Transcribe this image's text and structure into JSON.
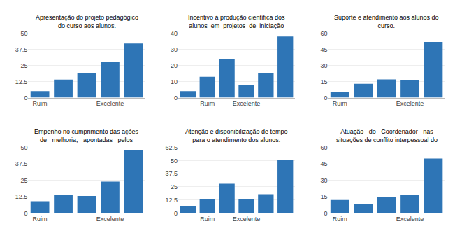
{
  "chart_data": [
    {
      "type": "bar",
      "title": "Apresentação do projeto pedagógico\ndo curso aos alunos.",
      "categories": [
        "Ruim",
        null,
        null,
        "Excelente",
        null
      ],
      "values": [
        5,
        14,
        19,
        28,
        42
      ],
      "color": "#2E75B6",
      "ylim": [
        0,
        50
      ],
      "yticks": [
        0,
        12.5,
        25,
        37.5,
        50
      ],
      "grid": true
    },
    {
      "type": "bar",
      "title": "Incentivo à produção científica dos\nalunos  em  projetos  de  iniciação",
      "categories": [
        null,
        "Ruim",
        null,
        "Excelente",
        null,
        null
      ],
      "values": [
        4,
        13,
        24,
        8,
        15,
        38
      ],
      "color": "#2E75B6",
      "ylim": [
        0,
        40
      ],
      "yticks": [
        0,
        10,
        20,
        30,
        40
      ],
      "grid": true
    },
    {
      "type": "bar",
      "title": "Suporte e atendimento aos alunos do\ncurso.",
      "categories": [
        "Ruim",
        null,
        null,
        "Excelente",
        null
      ],
      "values": [
        5,
        13,
        17,
        16,
        52
      ],
      "color": "#2E75B6",
      "ylim": [
        0,
        60
      ],
      "yticks": [
        0,
        15,
        30,
        45,
        60
      ],
      "grid": true
    },
    {
      "type": "bar",
      "title": "Empenho no cumprimento das ações\nde   melhoria,   apontadas   pelos",
      "categories": [
        "Ruim",
        null,
        null,
        "Excelente",
        null
      ],
      "values": [
        9,
        14,
        13,
        24,
        48
      ],
      "color": "#2E75B6",
      "ylim": [
        0,
        50
      ],
      "yticks": [
        0,
        12.5,
        25,
        37.5,
        50
      ],
      "grid": true
    },
    {
      "type": "bar",
      "title": "Atenção e disponibilização de tempo\npara o atendimento dos alunos.",
      "categories": [
        null,
        "Ruim",
        null,
        "Excelente",
        null,
        null
      ],
      "values": [
        7,
        13,
        28,
        13,
        18,
        51
      ],
      "color": "#2E75B6",
      "ylim": [
        0,
        62.5
      ],
      "yticks": [
        0,
        12.5,
        25,
        37.5,
        50,
        62.5
      ],
      "grid": true
    },
    {
      "type": "bar",
      "title": "Atuação   do   Coordenador   nas\nsituações de conflito interpessoal do",
      "categories": [
        "Ruim",
        null,
        null,
        "Excelente",
        null
      ],
      "values": [
        12,
        8,
        15,
        17,
        50
      ],
      "color": "#2E75B6",
      "ylim": [
        0,
        60
      ],
      "yticks": [
        0,
        15,
        30,
        45,
        60
      ],
      "grid": true
    }
  ]
}
